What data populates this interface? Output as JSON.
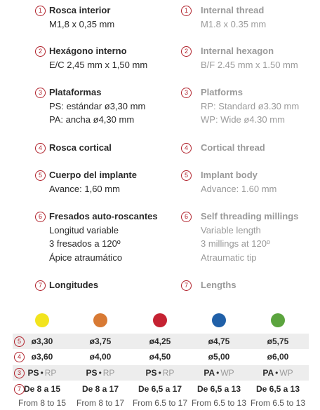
{
  "items": [
    {
      "marker": "1",
      "es": {
        "title": "Rosca interior",
        "lines": [
          "M1,8 x 0,35 mm"
        ]
      },
      "en": {
        "title": "Internal thread",
        "lines": [
          "M1.8 x 0.35 mm"
        ]
      }
    },
    {
      "marker": "2",
      "es": {
        "title": "Hexágono interno",
        "lines": [
          "E/C 2,45 mm x 1,50 mm"
        ]
      },
      "en": {
        "title": "Internal hexagon",
        "lines": [
          "B/F 2.45 mm x 1.50 mm"
        ]
      }
    },
    {
      "marker": "3",
      "es": {
        "title": "Plataformas",
        "lines": [
          "PS: estándar ø3,30 mm",
          "PA: ancha ø4,30 mm"
        ]
      },
      "en": {
        "title": "Platforms",
        "lines": [
          "RP: Standard ø3.30 mm",
          "WP: Wide ø4.30 mm"
        ]
      }
    },
    {
      "marker": "4",
      "es": {
        "title": "Rosca cortical",
        "lines": []
      },
      "en": {
        "title": "Cortical thread",
        "lines": []
      }
    },
    {
      "marker": "5",
      "es": {
        "title": "Cuerpo del implante",
        "lines": [
          "Avance: 1,60 mm"
        ]
      },
      "en": {
        "title": "Implant body",
        "lines": [
          "Advance: 1.60 mm"
        ]
      }
    },
    {
      "marker": "6",
      "es": {
        "title": "Fresados auto-roscantes",
        "lines": [
          "Longitud variable",
          "3 fresados a 120º",
          "Ápice atraumático"
        ]
      },
      "en": {
        "title": "Self threading millings",
        "lines": [
          "Variable length",
          "3 millings at 120º",
          "Atraumatic tip"
        ]
      }
    },
    {
      "marker": "7",
      "es": {
        "title": "Longitudes",
        "lines": []
      },
      "en": {
        "title": "Lengths",
        "lines": []
      }
    }
  ],
  "table": {
    "colors": [
      "#f2e41e",
      "#d87a34",
      "#c52232",
      "#2060a8",
      "#5ba43e"
    ],
    "rows": [
      {
        "marker": "5",
        "cells": [
          "ø3,30",
          "ø3,75",
          "ø4,25",
          "ø4,75",
          "ø5,75"
        ]
      },
      {
        "marker": "4",
        "cells": [
          "ø3,60",
          "ø4,00",
          "ø4,50",
          "ø5,00",
          "ø6,00"
        ]
      },
      {
        "marker": "3",
        "cells": [
          {
            "a": "PS",
            "sep": "•",
            "b": "RP"
          },
          {
            "a": "PS",
            "sep": "•",
            "b": "RP"
          },
          {
            "a": "PS",
            "sep": "•",
            "b": "RP"
          },
          {
            "a": "PA",
            "sep": "•",
            "b": "WP"
          },
          {
            "a": "PA",
            "sep": "•",
            "b": "WP"
          }
        ]
      },
      {
        "marker": "7",
        "cells": [
          {
            "es": "De 8 a 15",
            "en": "From 8 to 15"
          },
          {
            "es": "De 8 a 17",
            "en": "From 8 to 17"
          },
          {
            "es": "De 6,5 a 17",
            "en": "From 6.5 to 17"
          },
          {
            "es": "De 6,5 a 13",
            "en": "From 6.5 to 13"
          },
          {
            "es": "De 6,5 a 13",
            "en": "From 6.5 to 13"
          }
        ]
      }
    ]
  }
}
